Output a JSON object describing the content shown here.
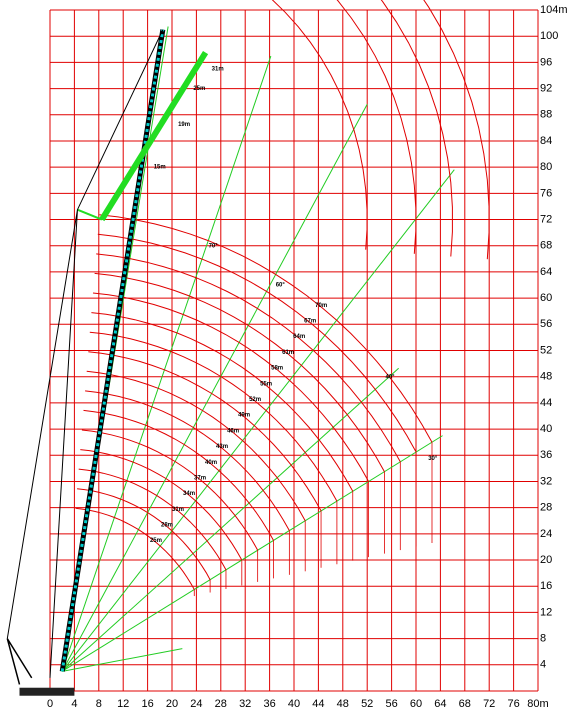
{
  "chart_data": {
    "type": "range-diagram",
    "xlim": [
      0,
      80
    ],
    "ylim": [
      0,
      104
    ],
    "xticks": [
      0,
      4,
      8,
      12,
      16,
      20,
      24,
      28,
      32,
      36,
      40,
      44,
      48,
      52,
      56,
      60,
      64,
      68,
      72,
      76,
      {
        "value": 80,
        "label": "80m"
      }
    ],
    "yticks": [
      4,
      8,
      12,
      16,
      20,
      24,
      28,
      32,
      36,
      40,
      44,
      48,
      52,
      56,
      60,
      64,
      68,
      72,
      76,
      80,
      84,
      88,
      92,
      96,
      100,
      {
        "value": 104,
        "label": "104m"
      }
    ],
    "grid": true,
    "grid_color": "#e00000",
    "curve_color": "#e00000",
    "angle_color": "#22cc22",
    "boom_length_labels": [
      "25m",
      "28m",
      "31m",
      "34m",
      "37m",
      "40m",
      "43m",
      "46m",
      "49m",
      "52m",
      "55m",
      "58m",
      "61m",
      "64m",
      "67m",
      "70m"
    ],
    "jib_length_labels": [
      "15m",
      "19m",
      "25m",
      "31m"
    ],
    "angle_labels": [
      "70°",
      "60°",
      "40°",
      "30°"
    ]
  }
}
